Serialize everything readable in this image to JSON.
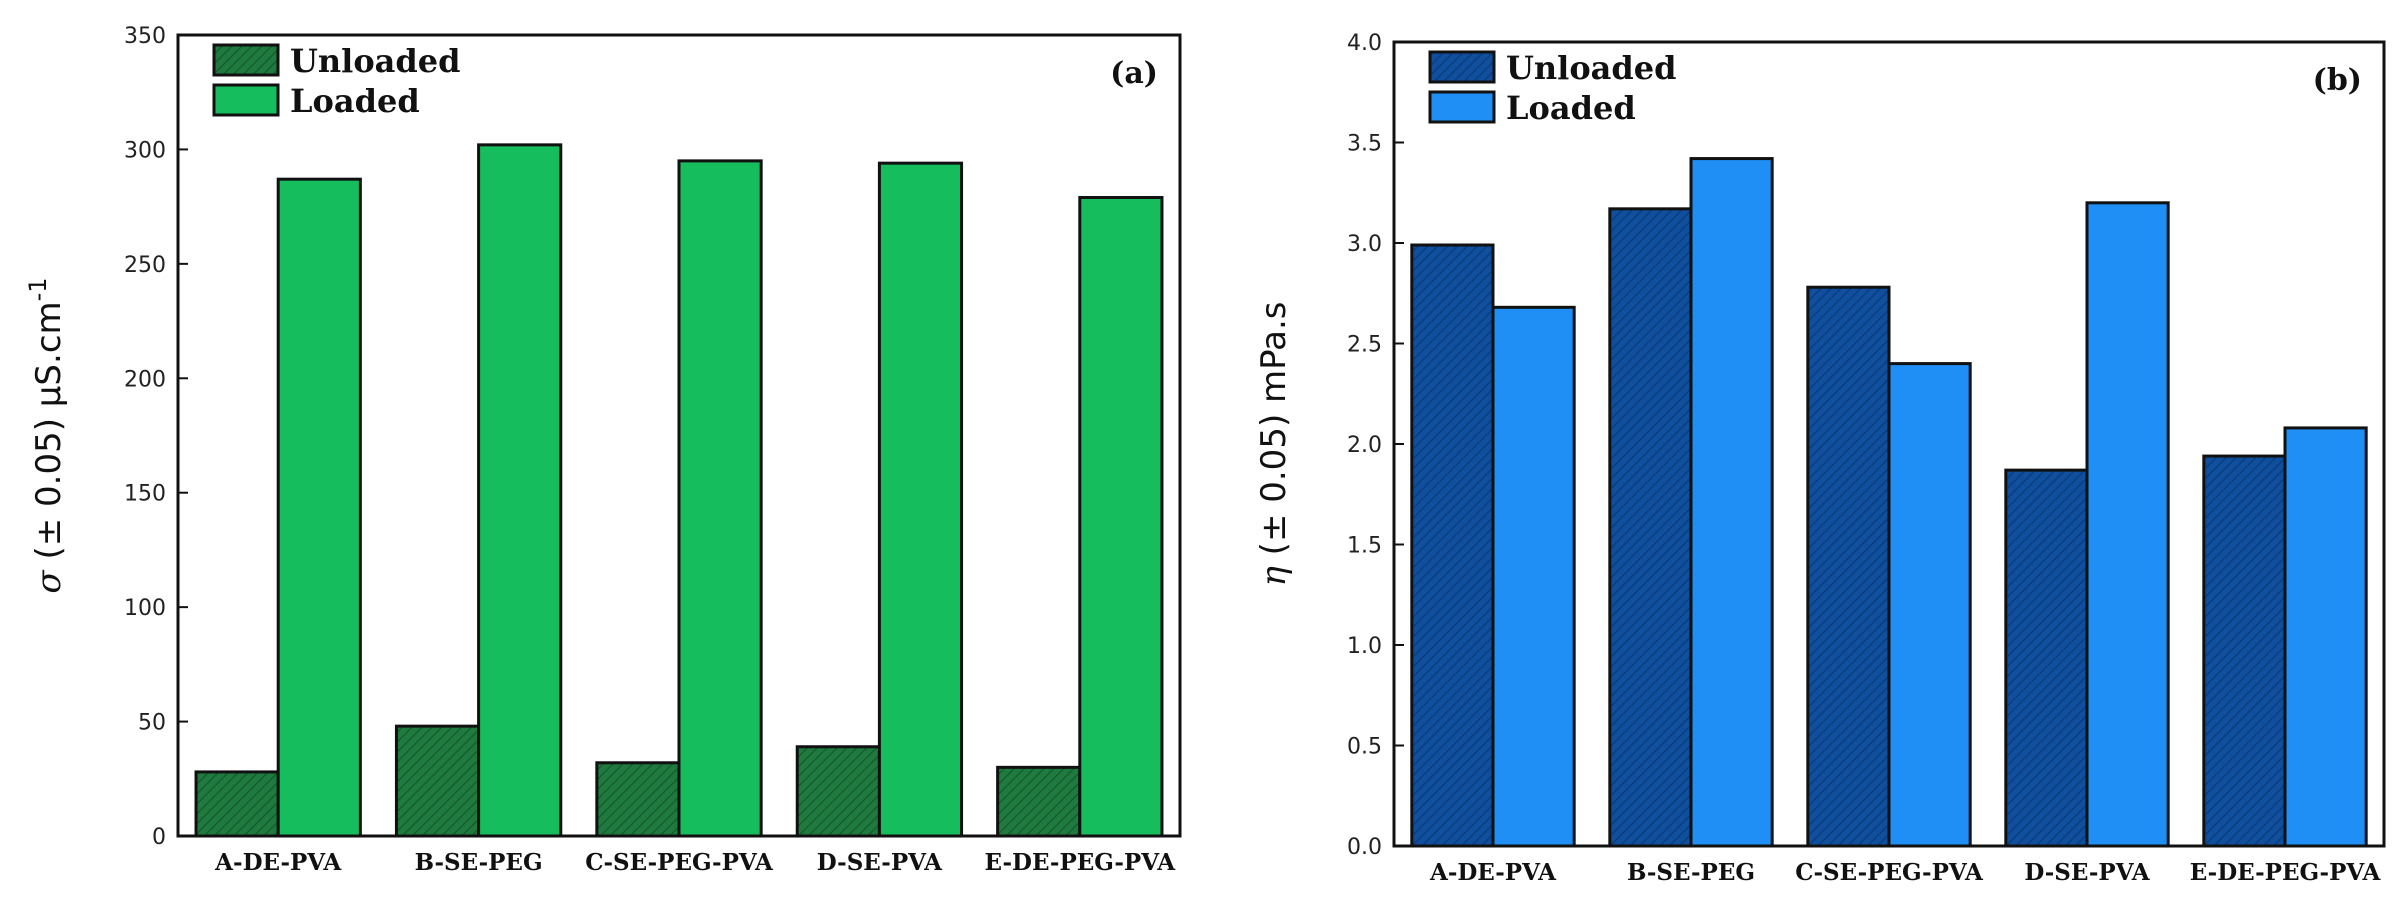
{
  "chart_data": [
    {
      "type": "bar",
      "panel_label": "(a)",
      "title": "",
      "xlabel": "",
      "ylabel": {
        "symbol": "σ",
        "rest": " (± 0.05) µS.cm",
        "sup": "-1"
      },
      "categories": [
        "A-DE-PVA",
        "B-SE-PEG",
        "C-SE-PEG-PVA",
        "D-SE-PVA",
        "E-DE-PEG-PVA"
      ],
      "series": [
        {
          "name": "Unloaded",
          "values": [
            28,
            48,
            32,
            39,
            30
          ]
        },
        {
          "name": "Loaded",
          "values": [
            287,
            302,
            295,
            294,
            279
          ]
        }
      ],
      "ylim": [
        0,
        350
      ],
      "yticks": [
        "0",
        "50",
        "100",
        "150",
        "200",
        "250",
        "300",
        "350"
      ],
      "legend_position": "top-left",
      "colors": {
        "Unloaded": "#1f7a3f",
        "Loaded": "#16bd5c"
      },
      "hatched_series": "Unloaded"
    },
    {
      "type": "bar",
      "panel_label": "(b)",
      "title": "",
      "xlabel": "",
      "ylabel": {
        "symbol": "η",
        "rest": " (± 0.05) mPa.s",
        "sup": ""
      },
      "categories": [
        "A-DE-PVA",
        "B-SE-PEG",
        "C-SE-PEG-PVA",
        "D-SE-PVA",
        "E-DE-PEG-PVA"
      ],
      "series": [
        {
          "name": "Unloaded",
          "values": [
            2.99,
            3.17,
            2.78,
            1.87,
            1.94
          ]
        },
        {
          "name": "Loaded",
          "values": [
            2.68,
            3.42,
            2.4,
            3.2,
            2.08
          ]
        }
      ],
      "ylim": [
        0,
        4.0
      ],
      "yticks": [
        "0.0",
        "0.5",
        "1.0",
        "1.5",
        "2.0",
        "2.5",
        "3.0",
        "3.5",
        "4.0"
      ],
      "legend_position": "top-left",
      "colors": {
        "Unloaded": "#0f4f9e",
        "Loaded": "#1f8ff5"
      },
      "hatched_series": "Unloaded"
    }
  ]
}
